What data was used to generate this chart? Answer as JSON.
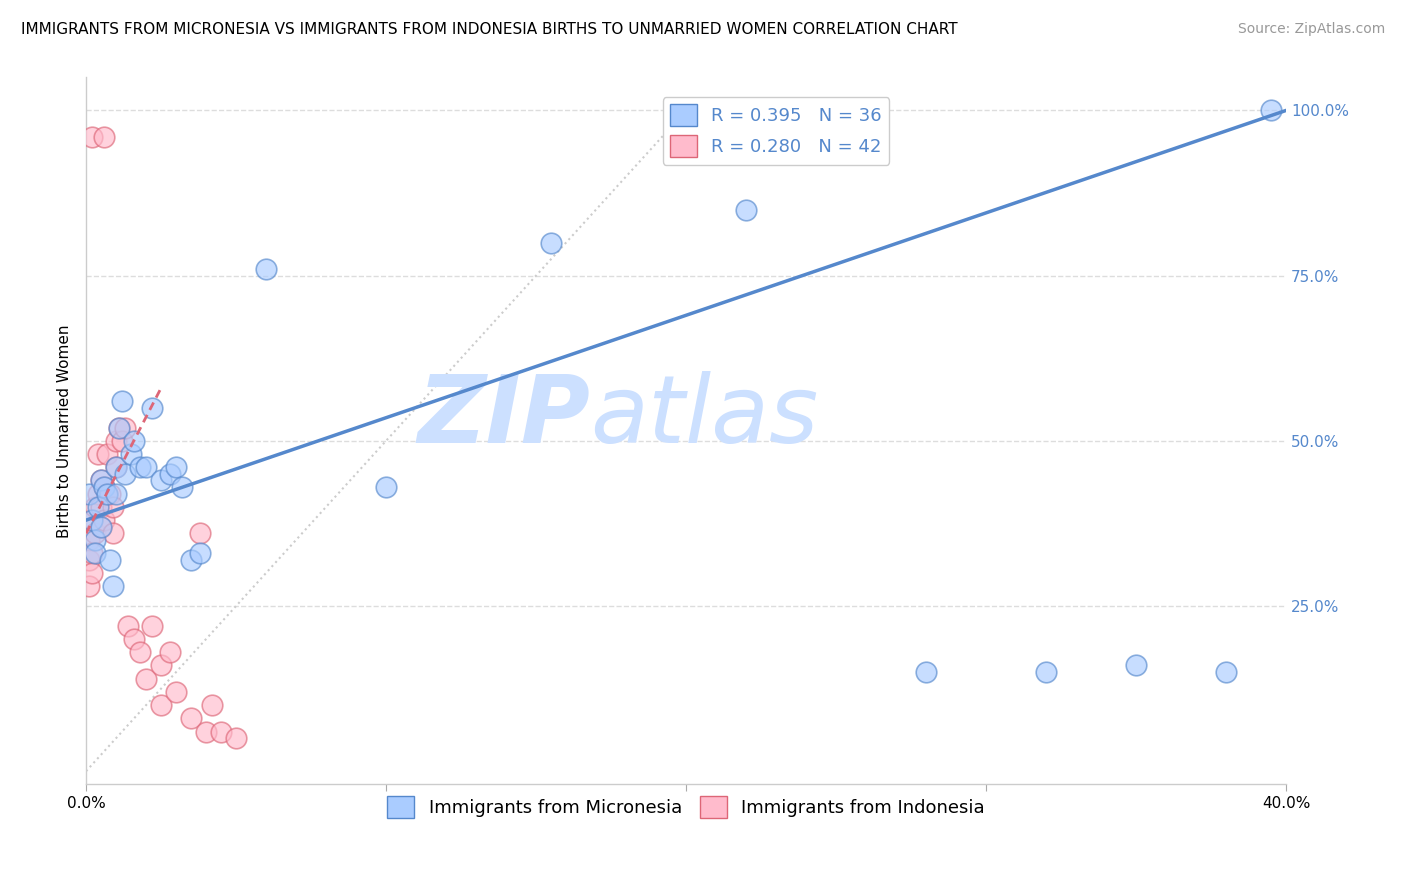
{
  "title": "IMMIGRANTS FROM MICRONESIA VS IMMIGRANTS FROM INDONESIA BIRTHS TO UNMARRIED WOMEN CORRELATION CHART",
  "source": "Source: ZipAtlas.com",
  "ylabel": "Births to Unmarried Women",
  "xlim": [
    0.0,
    0.4
  ],
  "ylim": [
    -0.02,
    1.05
  ],
  "xticks": [
    0.0,
    0.1,
    0.2,
    0.3,
    0.4
  ],
  "xticklabels": [
    "0.0%",
    "",
    "",
    "",
    "40.0%"
  ],
  "yticks_right": [
    0.25,
    0.5,
    0.75,
    1.0
  ],
  "ytick_labels_right": [
    "25.0%",
    "50.0%",
    "75.0%",
    "100.0%"
  ],
  "legend_entries": [
    {
      "label": "R = 0.395   N = 36"
    },
    {
      "label": "R = 0.280   N = 42"
    }
  ],
  "legend_bottom": [
    {
      "label": "Immigrants from Micronesia"
    },
    {
      "label": "Immigrants from Indonesia"
    }
  ],
  "blue_scatter_x": [
    0.001,
    0.002,
    0.003,
    0.003,
    0.004,
    0.005,
    0.005,
    0.006,
    0.007,
    0.008,
    0.009,
    0.01,
    0.01,
    0.011,
    0.012,
    0.013,
    0.015,
    0.016,
    0.018,
    0.02,
    0.022,
    0.025,
    0.028,
    0.03,
    0.032,
    0.035,
    0.038,
    0.06,
    0.1,
    0.155,
    0.22,
    0.28,
    0.32,
    0.35,
    0.38,
    0.395
  ],
  "blue_scatter_y": [
    0.42,
    0.38,
    0.35,
    0.33,
    0.4,
    0.44,
    0.37,
    0.43,
    0.42,
    0.32,
    0.28,
    0.46,
    0.42,
    0.52,
    0.56,
    0.45,
    0.48,
    0.5,
    0.46,
    0.46,
    0.55,
    0.44,
    0.45,
    0.46,
    0.43,
    0.32,
    0.33,
    0.76,
    0.43,
    0.8,
    0.85,
    0.15,
    0.15,
    0.16,
    0.15,
    1.0
  ],
  "pink_scatter_x": [
    0.001,
    0.001,
    0.001,
    0.002,
    0.002,
    0.002,
    0.002,
    0.003,
    0.003,
    0.004,
    0.004,
    0.005,
    0.005,
    0.005,
    0.006,
    0.006,
    0.006,
    0.007,
    0.007,
    0.008,
    0.009,
    0.009,
    0.01,
    0.01,
    0.011,
    0.012,
    0.013,
    0.014,
    0.016,
    0.018,
    0.02,
    0.022,
    0.025,
    0.025,
    0.028,
    0.03,
    0.035,
    0.038,
    0.04,
    0.042,
    0.045,
    0.05
  ],
  "pink_scatter_y": [
    0.35,
    0.32,
    0.28,
    0.38,
    0.33,
    0.3,
    0.96,
    0.4,
    0.36,
    0.48,
    0.42,
    0.37,
    0.44,
    0.4,
    0.43,
    0.38,
    0.96,
    0.48,
    0.42,
    0.42,
    0.4,
    0.36,
    0.5,
    0.46,
    0.52,
    0.5,
    0.52,
    0.22,
    0.2,
    0.18,
    0.14,
    0.22,
    0.1,
    0.16,
    0.18,
    0.12,
    0.08,
    0.36,
    0.06,
    0.1,
    0.06,
    0.05
  ],
  "blue_line_x": [
    0.0,
    0.4
  ],
  "blue_line_y": [
    0.38,
    1.0
  ],
  "pink_line_x": [
    0.0,
    0.025
  ],
  "pink_line_y": [
    0.36,
    0.58
  ],
  "gray_line_x": [
    0.0,
    0.2
  ],
  "gray_line_y": [
    0.0,
    1.0
  ],
  "title_fontsize": 11,
  "source_fontsize": 10,
  "label_fontsize": 11,
  "tick_fontsize": 11,
  "watermark_zip": "ZIP",
  "watermark_atlas": "atlas",
  "watermark_color": "#cce0ff",
  "background_color": "#ffffff",
  "grid_color": "#dddddd",
  "blue_color": "#5588cc",
  "blue_scatter_color": "#aaccff",
  "blue_edge_color": "#5588cc",
  "pink_color": "#dd6677",
  "pink_scatter_color": "#ffbbcc",
  "pink_edge_color": "#dd6677"
}
